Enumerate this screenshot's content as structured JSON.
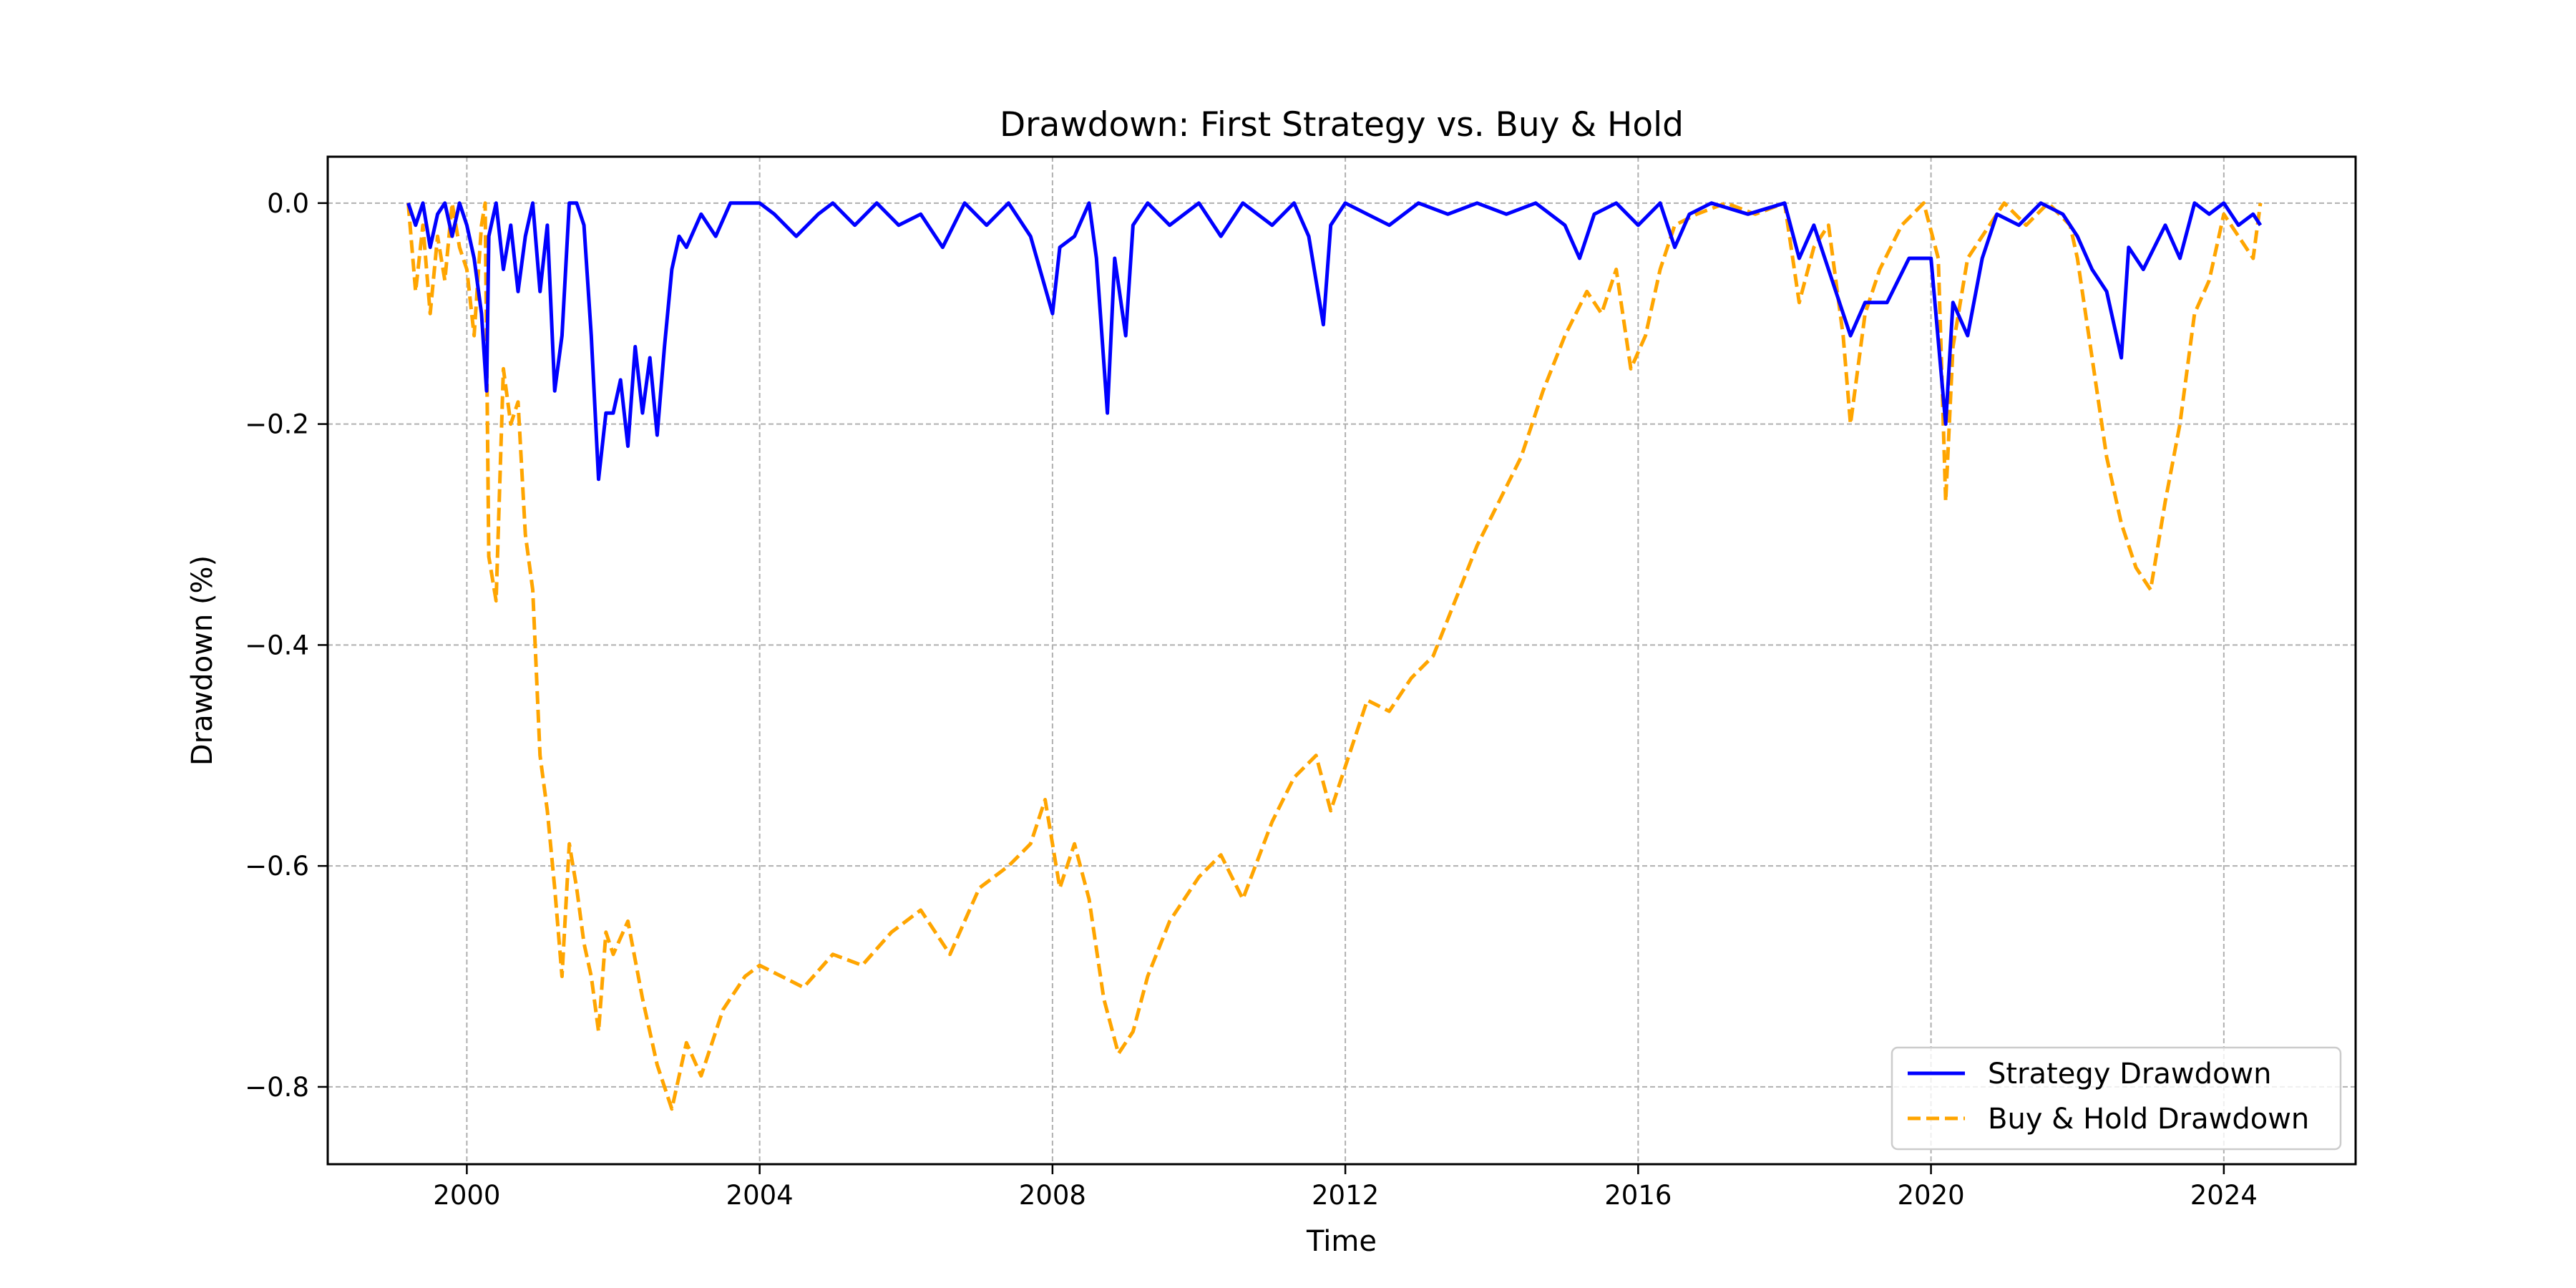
{
  "chart_data": {
    "type": "line",
    "title": "Drawdown: First Strategy vs. Buy & Hold",
    "xlabel": "Time",
    "ylabel": "Drawdown (%)",
    "xlim": [
      1998.1,
      2025.8
    ],
    "ylim": [
      -0.87,
      0.042
    ],
    "x_ticks": [
      2000,
      2004,
      2008,
      2012,
      2016,
      2020,
      2024
    ],
    "y_ticks": [
      0.0,
      -0.2,
      -0.4,
      -0.6,
      -0.8
    ],
    "y_tick_labels": [
      "0.0",
      "−0.2",
      "−0.4",
      "−0.6",
      "−0.8"
    ],
    "grid": true,
    "legend_position": "lower-right",
    "colors": {
      "strategy": "#0000ff",
      "buyhold": "#ffa500",
      "grid": "#b0b0b0"
    },
    "series": [
      {
        "name": "Strategy Drawdown",
        "style": "solid",
        "points": [
          [
            1999.2,
            0
          ],
          [
            1999.3,
            -0.02
          ],
          [
            1999.4,
            0
          ],
          [
            1999.5,
            -0.04
          ],
          [
            1999.6,
            -0.01
          ],
          [
            1999.7,
            0
          ],
          [
            1999.8,
            -0.03
          ],
          [
            1999.9,
            0
          ],
          [
            2000.0,
            -0.02
          ],
          [
            2000.1,
            -0.05
          ],
          [
            2000.2,
            -0.1
          ],
          [
            2000.27,
            -0.17
          ],
          [
            2000.3,
            -0.03
          ],
          [
            2000.4,
            0
          ],
          [
            2000.5,
            -0.06
          ],
          [
            2000.6,
            -0.02
          ],
          [
            2000.7,
            -0.08
          ],
          [
            2000.8,
            -0.03
          ],
          [
            2000.9,
            0
          ],
          [
            2001.0,
            -0.08
          ],
          [
            2001.1,
            -0.02
          ],
          [
            2001.2,
            -0.17
          ],
          [
            2001.3,
            -0.12
          ],
          [
            2001.4,
            0
          ],
          [
            2001.5,
            0
          ],
          [
            2001.6,
            -0.02
          ],
          [
            2001.7,
            -0.12
          ],
          [
            2001.8,
            -0.25
          ],
          [
            2001.9,
            -0.19
          ],
          [
            2002.0,
            -0.19
          ],
          [
            2002.1,
            -0.16
          ],
          [
            2002.2,
            -0.22
          ],
          [
            2002.3,
            -0.13
          ],
          [
            2002.4,
            -0.19
          ],
          [
            2002.5,
            -0.14
          ],
          [
            2002.6,
            -0.21
          ],
          [
            2002.7,
            -0.13
          ],
          [
            2002.8,
            -0.06
          ],
          [
            2002.9,
            -0.03
          ],
          [
            2003.0,
            -0.04
          ],
          [
            2003.2,
            -0.01
          ],
          [
            2003.4,
            -0.03
          ],
          [
            2003.6,
            0
          ],
          [
            2004.0,
            0
          ],
          [
            2004.2,
            -0.01
          ],
          [
            2004.5,
            -0.03
          ],
          [
            2004.8,
            -0.01
          ],
          [
            2005.0,
            0
          ],
          [
            2005.3,
            -0.02
          ],
          [
            2005.6,
            0
          ],
          [
            2005.9,
            -0.02
          ],
          [
            2006.2,
            -0.01
          ],
          [
            2006.5,
            -0.04
          ],
          [
            2006.8,
            0
          ],
          [
            2007.1,
            -0.02
          ],
          [
            2007.4,
            0
          ],
          [
            2007.7,
            -0.03
          ],
          [
            2008.0,
            -0.1
          ],
          [
            2008.1,
            -0.04
          ],
          [
            2008.3,
            -0.03
          ],
          [
            2008.5,
            0
          ],
          [
            2008.6,
            -0.05
          ],
          [
            2008.75,
            -0.19
          ],
          [
            2008.85,
            -0.05
          ],
          [
            2009.0,
            -0.12
          ],
          [
            2009.1,
            -0.02
          ],
          [
            2009.3,
            0
          ],
          [
            2009.6,
            -0.02
          ],
          [
            2010.0,
            0
          ],
          [
            2010.3,
            -0.03
          ],
          [
            2010.6,
            0
          ],
          [
            2011.0,
            -0.02
          ],
          [
            2011.3,
            0
          ],
          [
            2011.5,
            -0.03
          ],
          [
            2011.7,
            -0.11
          ],
          [
            2011.8,
            -0.02
          ],
          [
            2012.0,
            0
          ],
          [
            2012.3,
            -0.01
          ],
          [
            2012.6,
            -0.02
          ],
          [
            2013.0,
            0
          ],
          [
            2013.4,
            -0.01
          ],
          [
            2013.8,
            0
          ],
          [
            2014.2,
            -0.01
          ],
          [
            2014.6,
            0
          ],
          [
            2015.0,
            -0.02
          ],
          [
            2015.2,
            -0.05
          ],
          [
            2015.4,
            -0.01
          ],
          [
            2015.7,
            0
          ],
          [
            2016.0,
            -0.02
          ],
          [
            2016.3,
            0
          ],
          [
            2016.5,
            -0.04
          ],
          [
            2016.7,
            -0.01
          ],
          [
            2017.0,
            0
          ],
          [
            2017.5,
            -0.01
          ],
          [
            2018.0,
            0
          ],
          [
            2018.2,
            -0.05
          ],
          [
            2018.4,
            -0.02
          ],
          [
            2018.7,
            -0.08
          ],
          [
            2018.9,
            -0.12
          ],
          [
            2019.1,
            -0.09
          ],
          [
            2019.4,
            -0.09
          ],
          [
            2019.7,
            -0.05
          ],
          [
            2020.0,
            -0.05
          ],
          [
            2020.2,
            -0.2
          ],
          [
            2020.3,
            -0.09
          ],
          [
            2020.5,
            -0.12
          ],
          [
            2020.7,
            -0.05
          ],
          [
            2020.9,
            -0.01
          ],
          [
            2021.2,
            -0.02
          ],
          [
            2021.5,
            0
          ],
          [
            2021.8,
            -0.01
          ],
          [
            2022.0,
            -0.03
          ],
          [
            2022.2,
            -0.06
          ],
          [
            2022.4,
            -0.08
          ],
          [
            2022.6,
            -0.14
          ],
          [
            2022.7,
            -0.04
          ],
          [
            2022.9,
            -0.06
          ],
          [
            2023.2,
            -0.02
          ],
          [
            2023.4,
            -0.05
          ],
          [
            2023.6,
            0
          ],
          [
            2023.8,
            -0.01
          ],
          [
            2024.0,
            0
          ],
          [
            2024.2,
            -0.02
          ],
          [
            2024.4,
            -0.01
          ],
          [
            2024.5,
            -0.02
          ]
        ]
      },
      {
        "name": "Buy & Hold Drawdown",
        "style": "dashed",
        "points": [
          [
            1999.2,
            0
          ],
          [
            1999.3,
            -0.08
          ],
          [
            1999.4,
            -0.02
          ],
          [
            1999.5,
            -0.1
          ],
          [
            1999.6,
            -0.03
          ],
          [
            1999.7,
            -0.07
          ],
          [
            1999.8,
            0
          ],
          [
            1999.9,
            -0.04
          ],
          [
            2000.0,
            -0.06
          ],
          [
            2000.1,
            -0.12
          ],
          [
            2000.2,
            -0.02
          ],
          [
            2000.25,
            0
          ],
          [
            2000.3,
            -0.32
          ],
          [
            2000.4,
            -0.36
          ],
          [
            2000.5,
            -0.15
          ],
          [
            2000.6,
            -0.2
          ],
          [
            2000.7,
            -0.18
          ],
          [
            2000.8,
            -0.3
          ],
          [
            2000.9,
            -0.35
          ],
          [
            2001.0,
            -0.5
          ],
          [
            2001.1,
            -0.55
          ],
          [
            2001.2,
            -0.62
          ],
          [
            2001.3,
            -0.7
          ],
          [
            2001.4,
            -0.58
          ],
          [
            2001.5,
            -0.62
          ],
          [
            2001.6,
            -0.67
          ],
          [
            2001.7,
            -0.7
          ],
          [
            2001.8,
            -0.75
          ],
          [
            2001.9,
            -0.66
          ],
          [
            2002.0,
            -0.68
          ],
          [
            2002.2,
            -0.65
          ],
          [
            2002.4,
            -0.72
          ],
          [
            2002.6,
            -0.78
          ],
          [
            2002.8,
            -0.82
          ],
          [
            2003.0,
            -0.76
          ],
          [
            2003.2,
            -0.79
          ],
          [
            2003.5,
            -0.73
          ],
          [
            2003.8,
            -0.7
          ],
          [
            2004.0,
            -0.69
          ],
          [
            2004.3,
            -0.7
          ],
          [
            2004.6,
            -0.71
          ],
          [
            2005.0,
            -0.68
          ],
          [
            2005.4,
            -0.69
          ],
          [
            2005.8,
            -0.66
          ],
          [
            2006.2,
            -0.64
          ],
          [
            2006.6,
            -0.68
          ],
          [
            2007.0,
            -0.62
          ],
          [
            2007.4,
            -0.6
          ],
          [
            2007.7,
            -0.58
          ],
          [
            2007.9,
            -0.54
          ],
          [
            2008.1,
            -0.62
          ],
          [
            2008.3,
            -0.58
          ],
          [
            2008.5,
            -0.63
          ],
          [
            2008.7,
            -0.72
          ],
          [
            2008.9,
            -0.77
          ],
          [
            2009.1,
            -0.75
          ],
          [
            2009.3,
            -0.7
          ],
          [
            2009.6,
            -0.65
          ],
          [
            2010.0,
            -0.61
          ],
          [
            2010.3,
            -0.59
          ],
          [
            2010.6,
            -0.63
          ],
          [
            2011.0,
            -0.56
          ],
          [
            2011.3,
            -0.52
          ],
          [
            2011.6,
            -0.5
          ],
          [
            2011.8,
            -0.55
          ],
          [
            2012.0,
            -0.51
          ],
          [
            2012.3,
            -0.45
          ],
          [
            2012.6,
            -0.46
          ],
          [
            2012.9,
            -0.43
          ],
          [
            2013.2,
            -0.41
          ],
          [
            2013.5,
            -0.36
          ],
          [
            2013.8,
            -0.31
          ],
          [
            2014.1,
            -0.27
          ],
          [
            2014.4,
            -0.23
          ],
          [
            2014.7,
            -0.17
          ],
          [
            2015.0,
            -0.12
          ],
          [
            2015.3,
            -0.08
          ],
          [
            2015.5,
            -0.1
          ],
          [
            2015.7,
            -0.06
          ],
          [
            2015.9,
            -0.15
          ],
          [
            2016.1,
            -0.12
          ],
          [
            2016.3,
            -0.06
          ],
          [
            2016.5,
            -0.02
          ],
          [
            2016.8,
            -0.01
          ],
          [
            2017.2,
            0
          ],
          [
            2017.6,
            -0.01
          ],
          [
            2018.0,
            0
          ],
          [
            2018.2,
            -0.09
          ],
          [
            2018.4,
            -0.04
          ],
          [
            2018.6,
            -0.02
          ],
          [
            2018.8,
            -0.12
          ],
          [
            2018.9,
            -0.2
          ],
          [
            2019.1,
            -0.1
          ],
          [
            2019.3,
            -0.06
          ],
          [
            2019.6,
            -0.02
          ],
          [
            2019.9,
            0
          ],
          [
            2020.1,
            -0.05
          ],
          [
            2020.2,
            -0.27
          ],
          [
            2020.3,
            -0.13
          ],
          [
            2020.5,
            -0.05
          ],
          [
            2020.8,
            -0.02
          ],
          [
            2021.0,
            0
          ],
          [
            2021.3,
            -0.02
          ],
          [
            2021.6,
            0
          ],
          [
            2021.9,
            -0.02
          ],
          [
            2022.0,
            -0.05
          ],
          [
            2022.2,
            -0.14
          ],
          [
            2022.4,
            -0.23
          ],
          [
            2022.6,
            -0.29
          ],
          [
            2022.8,
            -0.33
          ],
          [
            2023.0,
            -0.35
          ],
          [
            2023.2,
            -0.27
          ],
          [
            2023.4,
            -0.2
          ],
          [
            2023.6,
            -0.1
          ],
          [
            2023.8,
            -0.07
          ],
          [
            2024.0,
            -0.01
          ],
          [
            2024.2,
            -0.03
          ],
          [
            2024.4,
            -0.05
          ],
          [
            2024.5,
            0
          ]
        ]
      }
    ]
  }
}
